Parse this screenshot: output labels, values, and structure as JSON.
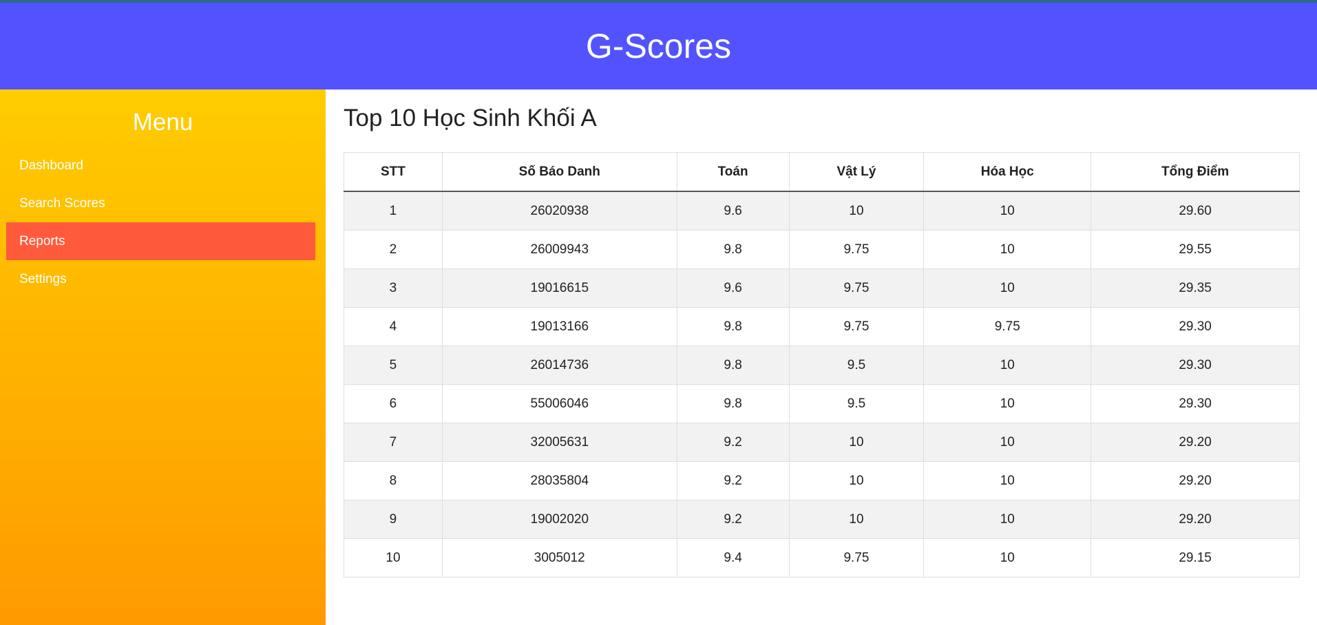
{
  "header": {
    "title": "G-Scores"
  },
  "sidebar": {
    "title": "Menu",
    "items": [
      {
        "label": "Dashboard"
      },
      {
        "label": "Search Scores"
      },
      {
        "label": "Reports"
      },
      {
        "label": "Settings"
      }
    ],
    "active_item": "Reports"
  },
  "main": {
    "title": "Top 10 Học Sinh Khối A",
    "table": {
      "headers": [
        "STT",
        "Số Báo Danh",
        "Toán",
        "Vật Lý",
        "Hóa Học",
        "Tổng Điểm"
      ],
      "rows": [
        [
          "1",
          "26020938",
          "9.6",
          "10",
          "10",
          "29.60"
        ],
        [
          "2",
          "26009943",
          "9.8",
          "9.75",
          "10",
          "29.55"
        ],
        [
          "3",
          "19016615",
          "9.6",
          "9.75",
          "10",
          "29.35"
        ],
        [
          "4",
          "19013166",
          "9.8",
          "9.75",
          "9.75",
          "29.30"
        ],
        [
          "5",
          "26014736",
          "9.8",
          "9.5",
          "10",
          "29.30"
        ],
        [
          "6",
          "55006046",
          "9.8",
          "9.5",
          "10",
          "29.30"
        ],
        [
          "7",
          "32005631",
          "9.2",
          "10",
          "10",
          "29.20"
        ],
        [
          "8",
          "28035804",
          "9.2",
          "10",
          "10",
          "29.20"
        ],
        [
          "9",
          "19002020",
          "9.2",
          "10",
          "10",
          "29.20"
        ],
        [
          "10",
          "3005012",
          "9.4",
          "9.75",
          "10",
          "29.15"
        ]
      ]
    }
  },
  "colors": {
    "header_bg": "#5253ff",
    "sidebar_top": "#ffcc00",
    "sidebar_bottom": "#ff9a00",
    "active_item_bg": "#ff5a3c"
  }
}
